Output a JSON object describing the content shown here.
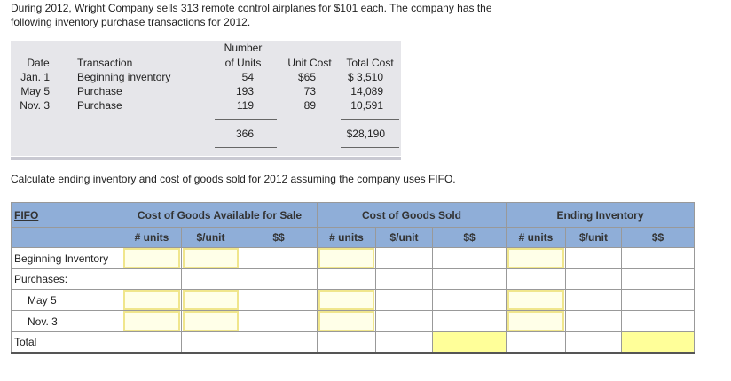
{
  "intro": {
    "line1": "During 2012, Wright Company sells 313 remote control airplanes for $101 each. The company has the",
    "line2": "following inventory purchase transactions for 2012."
  },
  "transactions": {
    "headers": {
      "date": "Date",
      "transaction": "Transaction",
      "units_line1": "Number",
      "units_line2": "of Units",
      "unit_cost": "Unit Cost",
      "total_cost": "Total Cost"
    },
    "rows": [
      {
        "date": "Jan. 1",
        "transaction": "Beginning inventory",
        "units": "54",
        "unit_cost": "$65",
        "total_cost": "$  3,510"
      },
      {
        "date": "May 5",
        "transaction": "Purchase",
        "units": "193",
        "unit_cost": "73",
        "total_cost": "14,089"
      },
      {
        "date": "Nov. 3",
        "transaction": "Purchase",
        "units": "119",
        "unit_cost": "89",
        "total_cost": "10,591"
      }
    ],
    "totals": {
      "units": "366",
      "total_cost": "$28,190"
    }
  },
  "prompt": "Calculate ending inventory and cost of goods sold for 2012 assuming the company uses FIFO.",
  "worksheet": {
    "method": "FIFO",
    "groups": [
      "Cost of Goods Available for Sale",
      "Cost of Goods Sold",
      "Ending Inventory"
    ],
    "subheaders": [
      "# units",
      "$/unit",
      "$$"
    ],
    "row_labels": [
      "Beginning Inventory",
      "Purchases:",
      "May 5",
      "Nov. 3",
      "Total"
    ]
  }
}
